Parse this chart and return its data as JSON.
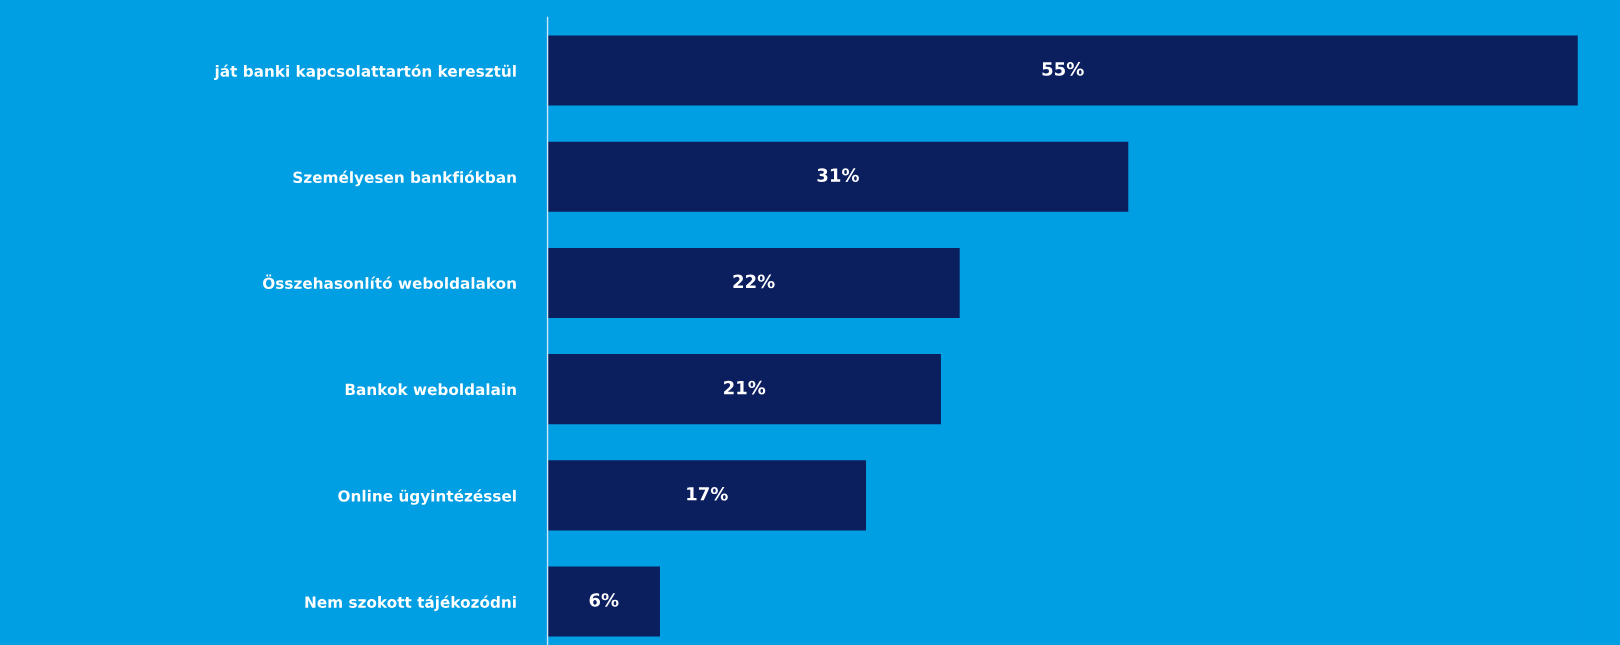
{
  "chart_data": {
    "type": "bar",
    "orientation": "horizontal",
    "categories": [
      "ját banki kapcsolattartón keresztül",
      "Személyesen bankfiókban",
      "Összehasonlító weboldalakon",
      "Bankok weboldalain",
      "Online ügyintézéssel",
      "Nem szokott tájékozódni"
    ],
    "values": [
      55,
      31,
      22,
      21,
      17,
      6
    ],
    "value_labels": [
      "55%",
      "31%",
      "22%",
      "21%",
      "17%",
      "6%"
    ],
    "color": "#0b1f5e",
    "grid": false,
    "legend": false
  }
}
